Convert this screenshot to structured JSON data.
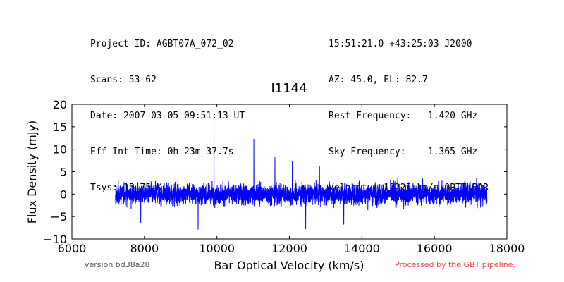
{
  "header": {
    "left_lines": [
      "Project ID: AGBT07A_072_02",
      "Scans: 53-62",
      "Date: 2007-03-05 09:51:13 UT",
      "Eff Int Time: 0h 23m 37.7s",
      "Tsys: 15.75 K"
    ],
    "right_lines": [
      "15:51:21.0 +43:25:03 J2000",
      "AZ: 45.0, EL: 82.7",
      "Rest Frequency:   1.420 GHz",
      "Sky Frequency:    1.365 GHz",
      "Velocity: 12225 km/s OPTI-BAR"
    ]
  },
  "footer": {
    "version": "version bd38a28",
    "pipeline": "Processed by the GBT pipeline.",
    "pipeline_color": "#ee4444"
  },
  "chart_data": {
    "type": "line",
    "title": "I1144",
    "xlabel": "Bar Optical Velocity (km/s)",
    "ylabel": "Flux Density (mJy)",
    "xlim": [
      6000,
      18000
    ],
    "ylim": [
      -10,
      20
    ],
    "xticks": [
      6000,
      8000,
      10000,
      12000,
      14000,
      16000,
      18000
    ],
    "xtick_labels": [
      "6000",
      "8000",
      "10000",
      "12000",
      "14000",
      "16000",
      "18000"
    ],
    "yticks": [
      -10,
      -5,
      0,
      5,
      10,
      15,
      20
    ],
    "ytick_labels": [
      "−10",
      "−5",
      "0",
      "5",
      "10",
      "15",
      "20"
    ],
    "grid": false,
    "series": [
      {
        "color": "#0000ff",
        "noise": {
          "x_start": 7200,
          "x_end": 17450,
          "points": 4000,
          "amplitude_mJy": 1.6,
          "seed": 1144
        },
        "spikes": [
          {
            "x": 9920,
            "y": 16.1
          },
          {
            "x": 11020,
            "y": 12.3
          },
          {
            "x": 11600,
            "y": 8.2
          },
          {
            "x": 12080,
            "y": 7.3
          },
          {
            "x": 12450,
            "y": -7.8
          },
          {
            "x": 9480,
            "y": -7.9
          },
          {
            "x": 13500,
            "y": -6.8
          },
          {
            "x": 7900,
            "y": -6.5
          },
          {
            "x": 12830,
            "y": 6.3
          }
        ]
      }
    ]
  }
}
